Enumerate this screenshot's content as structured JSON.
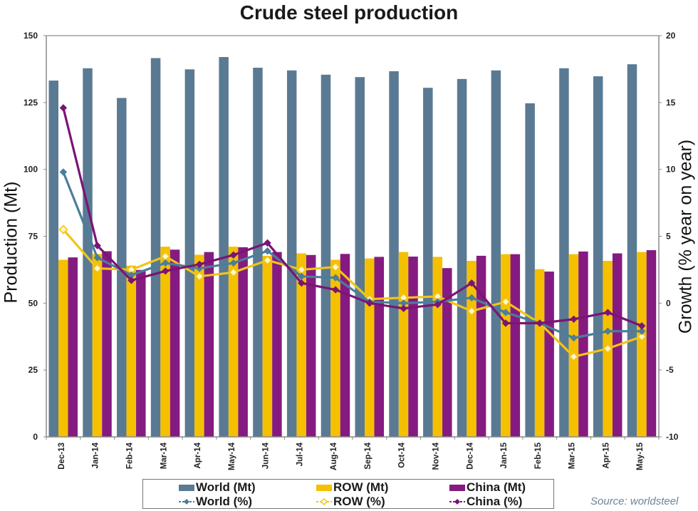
{
  "chart_data": {
    "type": "bar+line",
    "title": "Crude steel production",
    "xlabel": "",
    "ylabel": "Production (Mt)",
    "y2label": "Growth (% year on year)",
    "ylim": [
      0,
      150
    ],
    "y2lim": [
      -10,
      20
    ],
    "yticks": [
      "0",
      "25",
      "50",
      "75",
      "100",
      "125",
      "150"
    ],
    "y2ticks": [
      "-10",
      "-5",
      "0",
      "5",
      "10",
      "15",
      "20"
    ],
    "grid": false,
    "legend_position": "bottom",
    "categories": [
      "Dec-13",
      "Jan-14",
      "Feb-14",
      "Mar-14",
      "Apr-14",
      "May-14",
      "Jun-14",
      "Jul-14",
      "Aug-14",
      "Sep-14",
      "Oct-14",
      "Nov-14",
      "Dec-14",
      "Jan-15",
      "Feb-15",
      "Mar-15",
      "Apr-15",
      "May-15"
    ],
    "bar_series": [
      {
        "name": "World (Mt)",
        "color": "#5a7a93",
        "axis": "left",
        "values": [
          133.2,
          137.8,
          126.7,
          141.6,
          137.4,
          142.0,
          138.0,
          137.0,
          135.4,
          134.5,
          136.7,
          130.5,
          133.8,
          137.0,
          124.7,
          137.8,
          134.8,
          139.3
        ]
      },
      {
        "name": "ROW (Mt)",
        "color": "#f5c000",
        "axis": "left",
        "values": [
          66.2,
          68.4,
          64.0,
          71.1,
          68.1,
          71.1,
          67.7,
          68.6,
          66.2,
          66.7,
          69.1,
          67.3,
          65.8,
          68.3,
          62.7,
          68.3,
          65.8,
          69.1
        ]
      },
      {
        "name": "China (Mt)",
        "color": "#851b80",
        "axis": "left",
        "values": [
          67.1,
          69.4,
          62.4,
          70.0,
          69.1,
          70.9,
          69.1,
          68.0,
          68.4,
          67.3,
          67.4,
          63.1,
          67.7,
          68.3,
          61.8,
          69.3,
          68.6,
          69.8
        ]
      }
    ],
    "line_series": [
      {
        "name": "World (%)",
        "color": "#4a7e9a",
        "marker": "diamond-filled",
        "axis": "right",
        "values": [
          9.8,
          3.4,
          2.1,
          3.0,
          2.6,
          3.0,
          3.9,
          2.0,
          1.9,
          0.1,
          0.0,
          0.1,
          0.4,
          -0.7,
          -1.5,
          -2.6,
          -2.1,
          -2.1
        ]
      },
      {
        "name": "ROW (%)",
        "color": "#f2c418",
        "marker": "diamond-open",
        "axis": "right",
        "values": [
          5.5,
          2.6,
          2.5,
          3.5,
          2.0,
          2.3,
          3.2,
          2.5,
          2.7,
          0.3,
          0.4,
          0.5,
          -0.6,
          0.1,
          -1.5,
          -4.0,
          -3.4,
          -2.5
        ]
      },
      {
        "name": "China (%)",
        "color": "#7a1476",
        "marker": "diamond-filled",
        "axis": "right",
        "values": [
          14.6,
          4.3,
          1.7,
          2.4,
          2.9,
          3.6,
          4.5,
          1.5,
          1.0,
          0.0,
          -0.4,
          -0.1,
          1.5,
          -1.5,
          -1.5,
          -1.2,
          -0.7,
          -1.7
        ]
      }
    ],
    "source": "Source: worldsteel"
  },
  "legend": {
    "world_mt": "World (Mt)",
    "row_mt": "ROW (Mt)",
    "china_mt": "China (Mt)",
    "world_pct": "World (%)",
    "row_pct": "ROW (%)",
    "china_pct": "China (%)"
  }
}
